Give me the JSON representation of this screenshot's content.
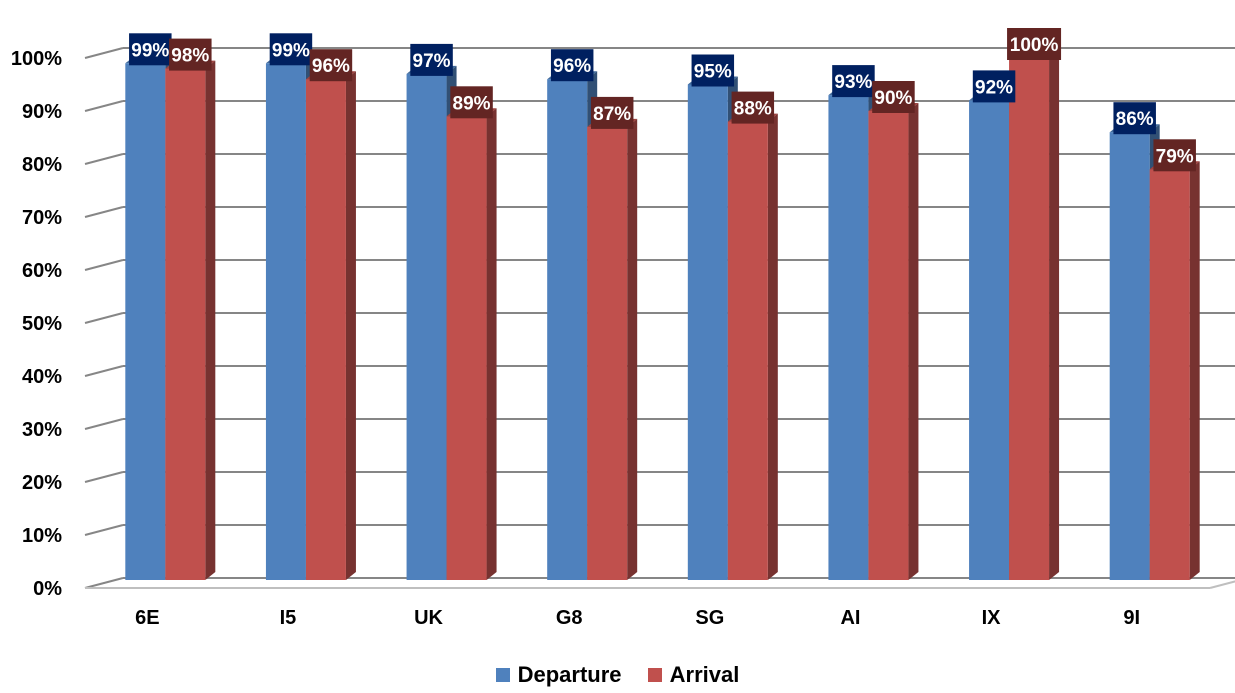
{
  "chart_data": {
    "type": "bar",
    "title": "",
    "xlabel": "",
    "ylabel": "",
    "categories": [
      "6E",
      "I5",
      "UK",
      "G8",
      "SG",
      "AI",
      "IX",
      "9I"
    ],
    "series": [
      {
        "name": "Departure",
        "color": "#4F81BD",
        "label_bg": "#002060",
        "values": [
          99,
          99,
          97,
          96,
          95,
          93,
          92,
          86
        ],
        "labels": [
          "99%",
          "99%",
          "97%",
          "96%",
          "95%",
          "93%",
          "92%",
          "86%"
        ]
      },
      {
        "name": "Arrival",
        "color": "#C0504D",
        "label_bg": "#632523",
        "values": [
          98,
          96,
          89,
          87,
          88,
          90,
          100,
          79
        ],
        "labels": [
          "98%",
          "96%",
          "89%",
          "87%",
          "88%",
          "90%",
          "100%",
          "79%"
        ]
      }
    ],
    "ylim": [
      0,
      100
    ],
    "yticks": [
      "0%",
      "10%",
      "20%",
      "30%",
      "40%",
      "50%",
      "60%",
      "70%",
      "80%",
      "90%",
      "100%"
    ],
    "grid": true,
    "legend_position": "bottom"
  }
}
